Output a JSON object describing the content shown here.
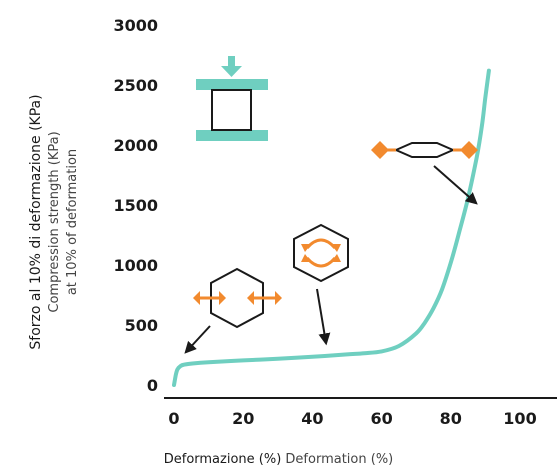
{
  "chart_data": {
    "type": "line",
    "xlabel": "Deformazione (%)",
    "xlabel_secondary": "Deformation (%)",
    "ylabel": "Sforzo al 10% di deformazione (KPa)",
    "ylabel_secondary_1": "Compression strength (KPa)",
    "ylabel_secondary_2": "at 10% of deformation",
    "xlim": [
      0,
      100
    ],
    "ylim": [
      0,
      3000
    ],
    "x_ticks": [
      "0",
      "20",
      "40",
      "60",
      "80",
      "100"
    ],
    "y_ticks": [
      "0",
      "500",
      "1000",
      "1500",
      "2000",
      "2500",
      "3000"
    ],
    "grid": false,
    "series": [
      {
        "color": "#6fcfc0",
        "x": [
          0,
          0.5,
          1,
          2,
          3,
          5,
          10,
          20,
          30,
          40,
          50,
          55,
          60,
          65,
          70,
          72.5,
          75,
          77.5,
          80,
          82.5,
          85,
          87.5,
          89,
          90,
          91
        ],
        "y": [
          0,
          80,
          130,
          160,
          170,
          178,
          190,
          205,
          218,
          235,
          255,
          265,
          280,
          325,
          430,
          520,
          640,
          800,
          1020,
          1280,
          1560,
          1900,
          2160,
          2400,
          2620
        ]
      }
    ],
    "annotations": [
      {
        "icon": "compression-test-icon",
        "description": "specimen between compression plates"
      },
      {
        "icon": "hexagon-cell-horizontal-arrows-icon",
        "stage": "initial"
      },
      {
        "icon": "hexagon-cell-curved-arrows-icon",
        "stage": "plateau"
      },
      {
        "icon": "collapsed-cell-horizontal-arrows-icon",
        "stage": "densification"
      }
    ],
    "colors": {
      "curve": "#6fcfc0",
      "plates": "#6fcfc0",
      "arrows": "#f28a2e",
      "axis": "#1a1a1a"
    }
  }
}
